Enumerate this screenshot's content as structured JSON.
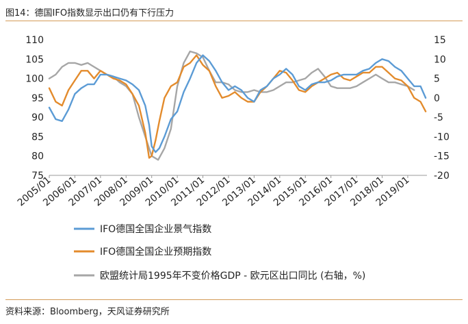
{
  "caption": "图14：德国IFO指数显示出口仍有下行压力",
  "source": "资料来源：Bloomberg，天风证券研究所",
  "chart_data": {
    "type": "line",
    "title": "",
    "y_left": {
      "ticks": [
        "110",
        "105",
        "100",
        "95",
        "90",
        "85",
        "80",
        "75"
      ],
      "lim": [
        75,
        110
      ]
    },
    "y_right": {
      "ticks": [
        "15",
        "10",
        "5",
        "0",
        "-5",
        "-10",
        "-15",
        "-20"
      ],
      "lim": [
        -20,
        15
      ]
    },
    "x": {
      "ticks": [
        "2005/01",
        "2006/01",
        "2007/01",
        "2008/01",
        "2009/01",
        "2010/01",
        "2011/01",
        "2012/01",
        "2013/01",
        "2014/01",
        "2015/01",
        "2016/01",
        "2017/01",
        "2018/01",
        "2019/01"
      ],
      "start": 2005.0,
      "end": 2019.75
    },
    "grid": false,
    "series": [
      {
        "name": "IFO德国全国企业景气指数",
        "axis": "left",
        "color": "#5b9bd5",
        "x": [
          2005.0,
          2005.25,
          2005.5,
          2005.75,
          2006.0,
          2006.25,
          2006.5,
          2006.75,
          2007.0,
          2007.25,
          2007.5,
          2007.75,
          2008.0,
          2008.25,
          2008.5,
          2008.75,
          2008.9,
          2009.0,
          2009.15,
          2009.3,
          2009.5,
          2009.75,
          2010.0,
          2010.25,
          2010.5,
          2010.75,
          2011.0,
          2011.25,
          2011.5,
          2011.75,
          2012.0,
          2012.25,
          2012.5,
          2012.75,
          2013.0,
          2013.25,
          2013.5,
          2013.75,
          2014.0,
          2014.25,
          2014.5,
          2014.75,
          2015.0,
          2015.25,
          2015.5,
          2015.75,
          2016.0,
          2016.25,
          2016.5,
          2016.75,
          2017.0,
          2017.25,
          2017.5,
          2017.75,
          2018.0,
          2018.25,
          2018.5,
          2018.75,
          2019.0,
          2019.25,
          2019.5,
          2019.7
        ],
        "values": [
          92.5,
          89.5,
          89,
          92,
          96,
          97.5,
          98.5,
          98.5,
          101,
          101,
          100.5,
          100,
          99.5,
          98.5,
          97,
          93,
          88,
          82.5,
          81,
          82,
          85,
          89.5,
          91.5,
          96.5,
          100,
          104,
          106,
          104.5,
          102,
          99,
          97,
          98,
          97,
          95,
          94,
          97,
          98,
          100,
          101,
          102.5,
          101,
          98,
          97,
          98.5,
          99,
          99,
          99.5,
          100.5,
          101,
          101,
          101,
          102,
          102.5,
          104,
          105,
          104.5,
          103,
          102,
          100,
          98,
          98,
          95
        ]
      },
      {
        "name": "IFO德国全国企业预期指数",
        "axis": "left",
        "color": "#e38b2c",
        "x": [
          2005.0,
          2005.25,
          2005.5,
          2005.75,
          2006.0,
          2006.25,
          2006.5,
          2006.75,
          2007.0,
          2007.25,
          2007.5,
          2007.75,
          2008.0,
          2008.25,
          2008.5,
          2008.75,
          2008.9,
          2009.0,
          2009.15,
          2009.3,
          2009.5,
          2009.75,
          2010.0,
          2010.25,
          2010.5,
          2010.75,
          2011.0,
          2011.25,
          2011.5,
          2011.75,
          2012.0,
          2012.25,
          2012.5,
          2012.75,
          2013.0,
          2013.25,
          2013.5,
          2013.75,
          2014.0,
          2014.25,
          2014.5,
          2014.75,
          2015.0,
          2015.25,
          2015.5,
          2015.75,
          2016.0,
          2016.25,
          2016.5,
          2016.75,
          2017.0,
          2017.25,
          2017.5,
          2017.75,
          2018.0,
          2018.25,
          2018.5,
          2018.75,
          2019.0,
          2019.25,
          2019.5,
          2019.7
        ],
        "values": [
          97.5,
          94,
          93,
          97,
          99.5,
          102,
          102,
          100,
          102,
          101,
          100,
          99.5,
          98.5,
          96,
          93,
          86,
          79.5,
          80,
          84,
          89,
          95,
          98,
          99,
          103,
          104,
          106,
          103.5,
          102,
          98,
          95,
          95.5,
          96.5,
          95,
          94,
          94,
          96.5,
          98,
          100,
          102,
          101.5,
          99.5,
          97,
          96.5,
          98,
          99,
          100,
          101,
          101.5,
          100,
          99.5,
          100.5,
          101.5,
          101.5,
          103,
          103,
          101.5,
          100,
          99.5,
          98,
          95,
          94,
          91.5
        ]
      },
      {
        "name": "欧盟统计局1995年不变价格GDP - 欧元区出口同比 (右轴，%)",
        "axis": "right",
        "color": "#a6a6a6",
        "x": [
          2005.0,
          2005.25,
          2005.5,
          2005.75,
          2006.0,
          2006.25,
          2006.5,
          2006.75,
          2007.0,
          2007.25,
          2007.5,
          2007.75,
          2008.0,
          2008.25,
          2008.5,
          2008.75,
          2009.0,
          2009.25,
          2009.5,
          2009.75,
          2010.0,
          2010.25,
          2010.5,
          2010.75,
          2011.0,
          2011.25,
          2011.5,
          2011.75,
          2012.0,
          2012.25,
          2012.5,
          2012.75,
          2013.0,
          2013.25,
          2013.5,
          2013.75,
          2014.0,
          2014.25,
          2014.5,
          2014.75,
          2015.0,
          2015.25,
          2015.5,
          2015.75,
          2016.0,
          2016.25,
          2016.5,
          2016.75,
          2017.0,
          2017.25,
          2017.5,
          2017.75,
          2018.0,
          2018.25,
          2018.5,
          2018.75,
          2019.0,
          2019.25
        ],
        "values": [
          5,
          6,
          8,
          9,
          9,
          8.5,
          9,
          8,
          7,
          6,
          5.5,
          4,
          3,
          1,
          -5,
          -10,
          -15,
          -16,
          -13,
          -8,
          3,
          9,
          12,
          11.5,
          10.5,
          7,
          4,
          4,
          3.5,
          2,
          1.5,
          1.5,
          2,
          1.5,
          1.5,
          2,
          3,
          4,
          4,
          4.5,
          5,
          6.5,
          7.5,
          5.5,
          3,
          2.5,
          2.5,
          2.5,
          3,
          4,
          5,
          6,
          5,
          4,
          4,
          3.5,
          3,
          2
        ]
      }
    ]
  }
}
